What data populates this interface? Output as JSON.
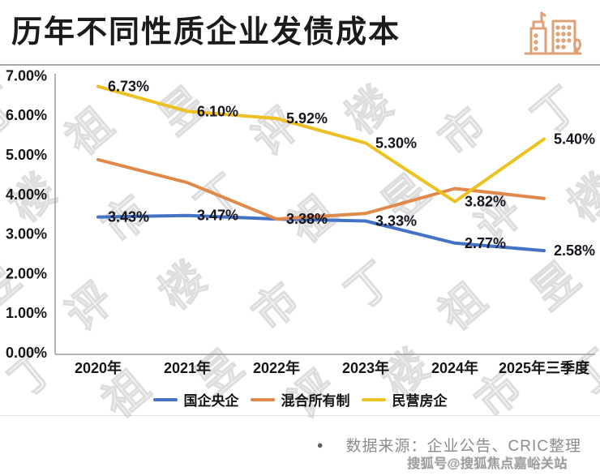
{
  "header": {
    "title": "历年不同性质企业发债成本"
  },
  "chart_data": {
    "type": "line",
    "title": "历年不同性质企业发债成本",
    "categories": [
      "2020年",
      "2021年",
      "2022年",
      "2023年",
      "2024年",
      "2025年三季度"
    ],
    "series": [
      {
        "name": "国企央企",
        "color": "#4472C4",
        "values": [
          3.43,
          3.47,
          3.38,
          3.33,
          2.77,
          2.58
        ],
        "labels": [
          "3.43%",
          "3.47%",
          "3.38%",
          "3.33%",
          "2.77%",
          "2.58%"
        ]
      },
      {
        "name": "混合所有制",
        "color": "#E0894A",
        "values": [
          4.88,
          4.3,
          3.38,
          3.52,
          4.15,
          3.9
        ],
        "labels": null
      },
      {
        "name": "民营房企",
        "color": "#EDC122",
        "values": [
          6.73,
          6.1,
          5.92,
          5.3,
          3.82,
          5.4
        ],
        "labels": [
          "6.73%",
          "6.10%",
          "5.92%",
          "5.30%",
          "3.82%",
          "5.40%"
        ]
      }
    ],
    "ylim": [
      0,
      7
    ],
    "ytick_labels": [
      "0.00%",
      "1.00%",
      "2.00%",
      "3.00%",
      "4.00%",
      "5.00%",
      "6.00%",
      "7.00%"
    ],
    "grid": false,
    "legend_position": "bottom",
    "xlabel": "",
    "ylabel": ""
  },
  "footer": {
    "source_bullet": "●",
    "source": "数据来源：企业公告、CRIC整理",
    "sohu_watermark": "搜狐号@搜狐焦点嘉峪关站"
  },
  "watermark": {
    "text": "丁祖昱评楼市"
  },
  "colors": {
    "axis": "#9c9c9c",
    "label_text": "#15151f",
    "icon": "#DFA077"
  }
}
